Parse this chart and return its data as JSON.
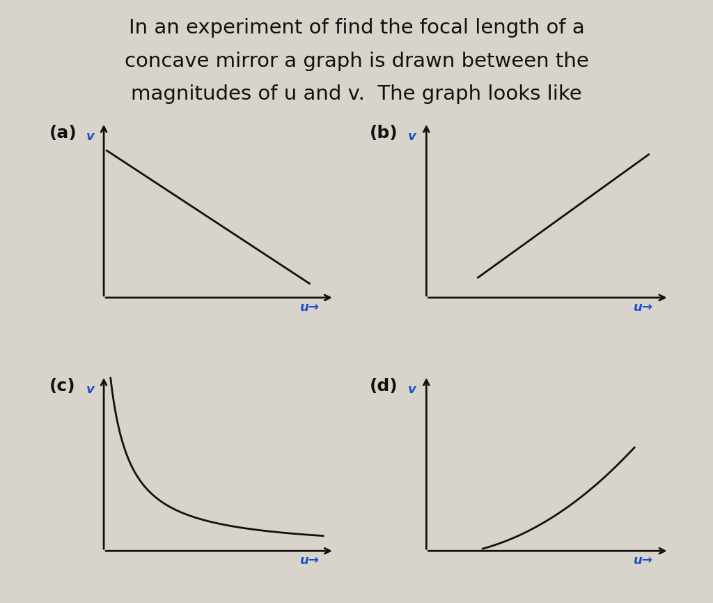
{
  "title_lines": [
    "In an experiment of find the focal length of a",
    "concave mirror a graph is drawn between the",
    "magnitudes of u and v.  The graph looks like"
  ],
  "background_color": "#d8d4cc",
  "text_color": "#111111",
  "label_color": "#1a4fcc",
  "panels": [
    {
      "label": "(a)",
      "type": "line_decreasing"
    },
    {
      "label": "(b)",
      "type": "line_increasing"
    },
    {
      "label": "(c)",
      "type": "hyperbola_decreasing"
    },
    {
      "label": "(d)",
      "type": "hyperbola_increasing"
    }
  ],
  "axis_label_u": "u",
  "axis_label_v": "v",
  "arrow_color": "#111111",
  "line_color": "#111111",
  "line_width": 2.0,
  "title_fontsize": 21,
  "panel_label_fontsize": 18,
  "axis_label_fontsize": 13
}
